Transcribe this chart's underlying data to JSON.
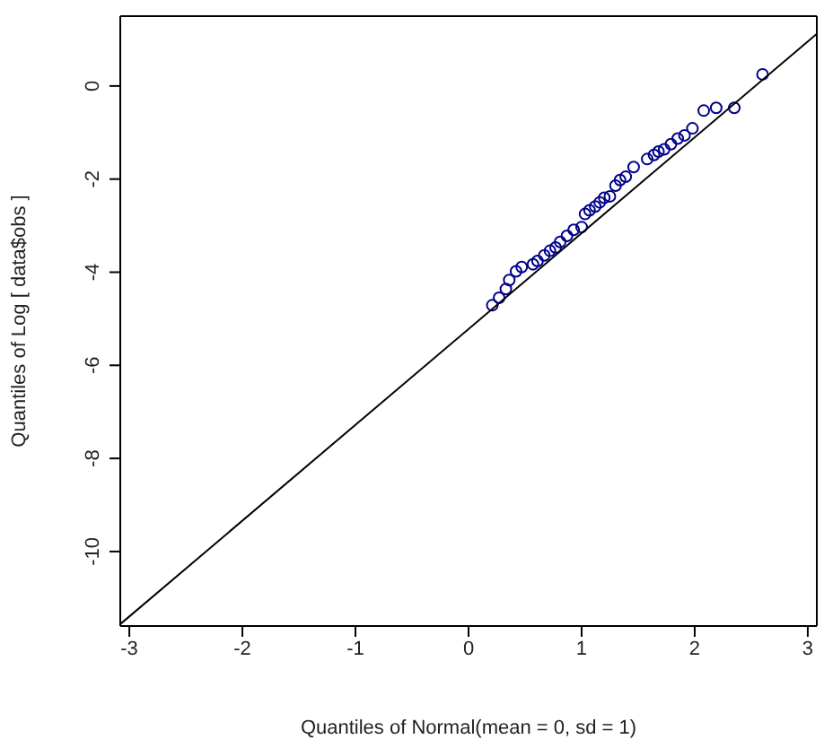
{
  "chart_data": {
    "type": "scatter",
    "xlabel": "Quantiles of Normal(mean = 0, sd = 1)",
    "ylabel": "Quantiles of Log [ data$obs ]",
    "xlim": [
      -3.08,
      3.08
    ],
    "xticks": [
      -3,
      -2,
      -1,
      0,
      1,
      2,
      3
    ],
    "ylim": [
      -11.6,
      1.5
    ],
    "yticks": [
      -10,
      -8,
      -6,
      -4,
      -2,
      0
    ],
    "series": [
      {
        "marker": "circle",
        "color": "#00008b",
        "x": [
          0.21,
          0.27,
          0.33,
          0.36,
          0.42,
          0.47,
          0.57,
          0.61,
          0.67,
          0.72,
          0.77,
          0.81,
          0.87,
          0.93,
          1.0,
          1.03,
          1.07,
          1.12,
          1.16,
          1.2,
          1.25,
          1.3,
          1.34,
          1.39,
          1.46,
          1.58,
          1.64,
          1.68,
          1.73,
          1.79,
          1.85,
          1.91,
          1.98,
          2.08,
          2.19,
          2.35,
          2.6
        ],
        "values": [
          -4.71,
          -4.55,
          -4.36,
          -4.17,
          -3.98,
          -3.89,
          -3.83,
          -3.76,
          -3.64,
          -3.54,
          -3.47,
          -3.35,
          -3.22,
          -3.09,
          -3.03,
          -2.75,
          -2.67,
          -2.59,
          -2.5,
          -2.4,
          -2.37,
          -2.14,
          -2.02,
          -1.95,
          -1.74,
          -1.57,
          -1.48,
          -1.41,
          -1.36,
          -1.25,
          -1.13,
          -1.06,
          -0.91,
          -0.53,
          -0.47,
          -0.47,
          0.25
        ]
      },
      {
        "type": "line",
        "color": "#000000",
        "line_style": "solid",
        "x": [
          -3.08,
          3.08
        ],
        "values": [
          -11.56,
          1.12
        ]
      }
    ]
  }
}
